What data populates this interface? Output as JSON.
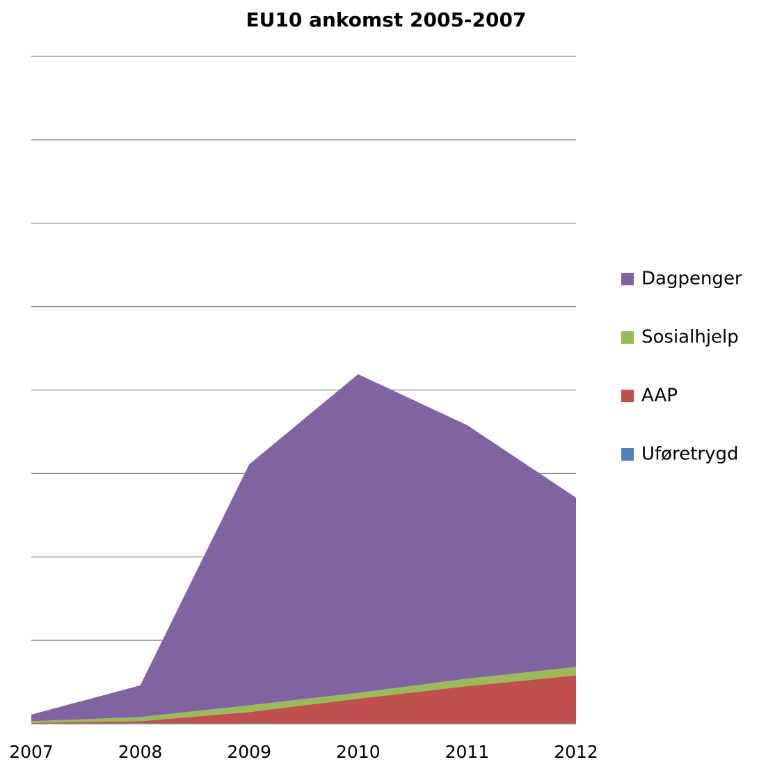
{
  "chart_data": {
    "type": "area",
    "stacked": true,
    "title": "EU10 ankomst 2005-2007",
    "categories": [
      "2007",
      "2008",
      "2009",
      "2010",
      "2011",
      "2012"
    ],
    "series": [
      {
        "name": "Uføretrygd",
        "color": "#4f81bd",
        "values": [
          0,
          0,
          0,
          0,
          0,
          0
        ]
      },
      {
        "name": "AAP",
        "color": "#c0504d",
        "values": [
          0.01,
          0.03,
          0.14,
          0.3,
          0.45,
          0.58
        ]
      },
      {
        "name": "Sosialhjelp",
        "color": "#9bbb59",
        "values": [
          0.02,
          0.05,
          0.08,
          0.07,
          0.09,
          0.1
        ]
      },
      {
        "name": "Dagpenger",
        "color": "#8064a2",
        "values": [
          0.08,
          0.38,
          2.89,
          3.82,
          3.04,
          2.03
        ]
      }
    ],
    "ylim": [
      0,
      8
    ],
    "yticks": [
      0,
      1,
      2,
      3,
      4,
      5,
      6,
      7,
      8
    ],
    "grid": true,
    "legend": "right"
  }
}
